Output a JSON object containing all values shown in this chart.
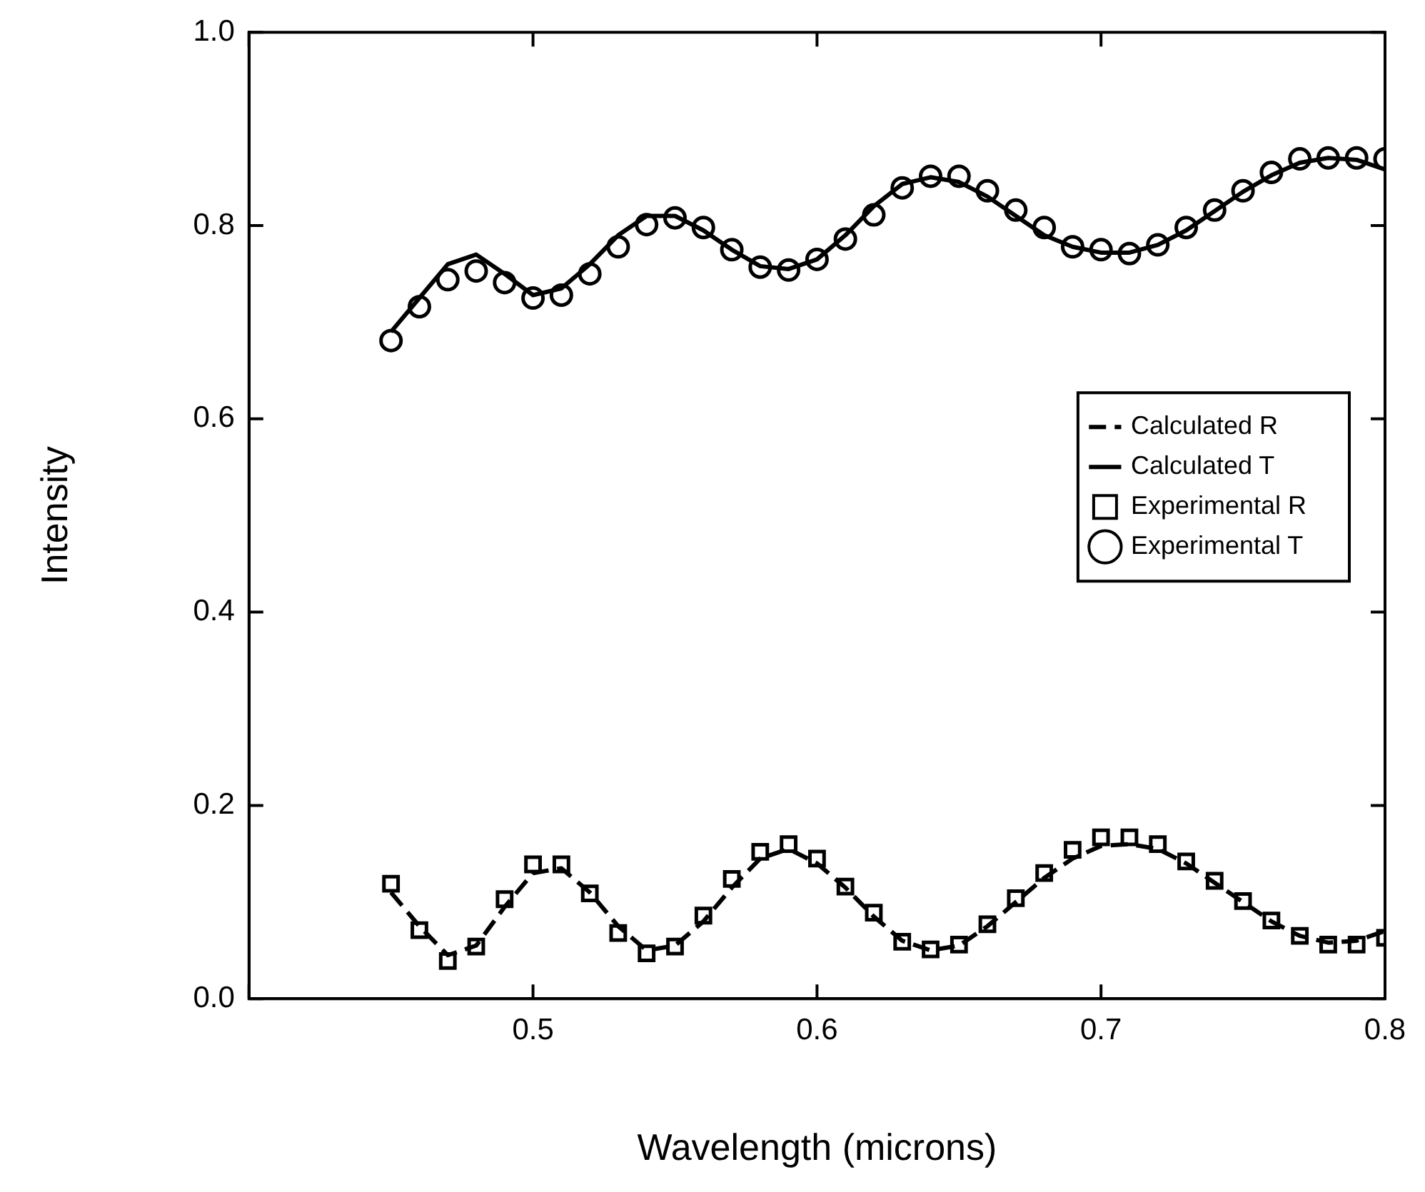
{
  "chart_data": {
    "type": "line",
    "xlabel": "Wavelength (microns)",
    "ylabel": "Intensity",
    "x": [
      0.45,
      0.46,
      0.47,
      0.48,
      0.49,
      0.5,
      0.51,
      0.52,
      0.53,
      0.54,
      0.55,
      0.56,
      0.57,
      0.58,
      0.59,
      0.6,
      0.61,
      0.62,
      0.63,
      0.64,
      0.65,
      0.66,
      0.67,
      0.68,
      0.69,
      0.7,
      0.71,
      0.72,
      0.73,
      0.74,
      0.75,
      0.76,
      0.77,
      0.78,
      0.79,
      0.8
    ],
    "xlim": [
      0.4,
      0.8
    ],
    "xticks": [
      {
        "value": 0.4,
        "label": null
      },
      0.5,
      0.6,
      0.7,
      0.8
    ],
    "ylim": [
      0,
      1
    ],
    "yticks": [
      {
        "value": 0,
        "label": "0.0"
      },
      0.2,
      0.4,
      0.6,
      0.8,
      {
        "value": 1,
        "label": "1.0"
      }
    ],
    "grid": false,
    "legend": "right",
    "series": [
      {
        "name": "Calculated R",
        "type": "line",
        "line_style": "dashed",
        "marker": "none",
        "color": "#000000",
        "values": [
          0.11,
          0.075,
          0.045,
          0.055,
          0.095,
          0.13,
          0.135,
          0.11,
          0.075,
          0.05,
          0.055,
          0.08,
          0.115,
          0.145,
          0.155,
          0.14,
          0.115,
          0.085,
          0.06,
          0.05,
          0.055,
          0.075,
          0.1,
          0.125,
          0.145,
          0.158,
          0.16,
          0.155,
          0.14,
          0.12,
          0.1,
          0.08,
          0.065,
          0.058,
          0.06,
          0.07
        ]
      },
      {
        "name": "Calculated T",
        "type": "line",
        "line_style": "solid",
        "marker": "none",
        "color": "#000000",
        "values": [
          0.69,
          0.725,
          0.76,
          0.77,
          0.75,
          0.728,
          0.735,
          0.76,
          0.79,
          0.81,
          0.81,
          0.795,
          0.775,
          0.758,
          0.755,
          0.765,
          0.79,
          0.82,
          0.843,
          0.85,
          0.845,
          0.83,
          0.81,
          0.79,
          0.778,
          0.772,
          0.772,
          0.78,
          0.795,
          0.815,
          0.835,
          0.852,
          0.865,
          0.87,
          0.868,
          0.858
        ]
      },
      {
        "name": "Experimental R",
        "type": "scatter",
        "marker": "square",
        "color": "#000000",
        "values": [
          0.119,
          0.071,
          0.039,
          0.054,
          0.103,
          0.139,
          0.139,
          0.109,
          0.068,
          0.047,
          0.054,
          0.086,
          0.124,
          0.152,
          0.16,
          0.145,
          0.116,
          0.089,
          0.059,
          0.051,
          0.056,
          0.077,
          0.104,
          0.13,
          0.154,
          0.167,
          0.167,
          0.16,
          0.142,
          0.122,
          0.101,
          0.081,
          0.065,
          0.056,
          0.056,
          0.063
        ]
      },
      {
        "name": "Experimental T",
        "type": "scatter",
        "marker": "circle",
        "color": "#000000",
        "values": [
          0.681,
          0.716,
          0.744,
          0.753,
          0.741,
          0.725,
          0.728,
          0.75,
          0.778,
          0.801,
          0.808,
          0.798,
          0.775,
          0.757,
          0.754,
          0.765,
          0.786,
          0.811,
          0.839,
          0.851,
          0.851,
          0.836,
          0.816,
          0.798,
          0.778,
          0.775,
          0.771,
          0.78,
          0.798,
          0.816,
          0.836,
          0.855,
          0.869,
          0.87,
          0.87,
          0.869
        ]
      }
    ]
  }
}
